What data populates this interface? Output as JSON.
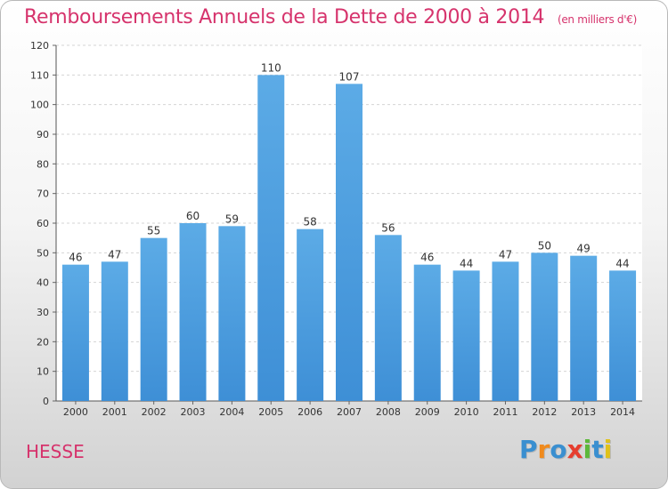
{
  "title": "Remboursements Annuels de la Dette de 2000 à 2014",
  "subtitle": "(en milliers d'€)",
  "place": "HESSE",
  "logo": {
    "letters": [
      {
        "ch": "P",
        "color": "#3a8fd0"
      },
      {
        "ch": "r",
        "color": "#f08a1c"
      },
      {
        "ch": "o",
        "color": "#3a8fd0"
      },
      {
        "ch": "x",
        "color": "#e63d2e"
      },
      {
        "ch": "i",
        "color": "#5cb83a"
      },
      {
        "ch": "t",
        "color": "#3a8fd0"
      },
      {
        "ch": "i",
        "color": "#e0c21a"
      }
    ]
  },
  "colors": {
    "bar": "#3e8fd6",
    "bar_highlight": "#5cabe6",
    "title": "#d6336c",
    "grid": "#d4d4d4"
  },
  "chart_data": {
    "type": "bar",
    "title": "Remboursements Annuels de la Dette de 2000 à 2014",
    "subtitle": "(en milliers d'€)",
    "categories": [
      "2000",
      "2001",
      "2002",
      "2003",
      "2004",
      "2005",
      "2006",
      "2007",
      "2008",
      "2009",
      "2010",
      "2011",
      "2012",
      "2013",
      "2014"
    ],
    "values": [
      46,
      47,
      55,
      60,
      59,
      110,
      58,
      107,
      56,
      46,
      44,
      47,
      50,
      49,
      44
    ],
    "ylim": [
      0,
      120
    ],
    "yticks": [
      0,
      10,
      20,
      30,
      40,
      50,
      60,
      70,
      80,
      90,
      100,
      110,
      120
    ],
    "grid": true,
    "data_labels": true
  }
}
